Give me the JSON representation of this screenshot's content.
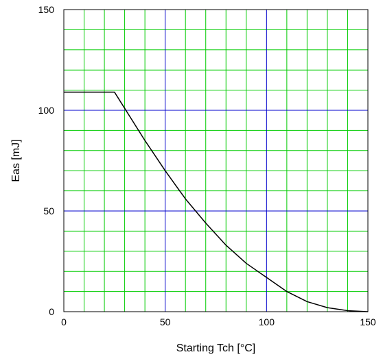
{
  "chart_data": {
    "type": "line",
    "xlabel": "Starting Tch [°C]",
    "ylabel": "Eas [mJ]",
    "xlim": [
      0,
      150
    ],
    "ylim": [
      0,
      150
    ],
    "x_ticks": [
      0,
      50,
      100,
      150
    ],
    "y_ticks": [
      0,
      50,
      100,
      150
    ],
    "x_tick_labels": [
      "0",
      "50",
      "100",
      "150"
    ],
    "y_tick_labels": [
      "0",
      "50",
      "100",
      "150"
    ],
    "minor_grid_step": 10,
    "major_grid_step": 50,
    "grid": true,
    "minor_grid_color": "#00cc00",
    "major_grid_color": "#0000cc",
    "line_color": "#000000",
    "series": [
      {
        "x": [
          0,
          25,
          30,
          40,
          50,
          60,
          70,
          80,
          90,
          100,
          110,
          120,
          130,
          140,
          150
        ],
        "y": [
          109,
          109,
          101,
          85,
          70,
          56,
          44,
          33,
          24,
          17,
          10,
          5,
          2,
          0.5,
          0
        ]
      }
    ]
  }
}
